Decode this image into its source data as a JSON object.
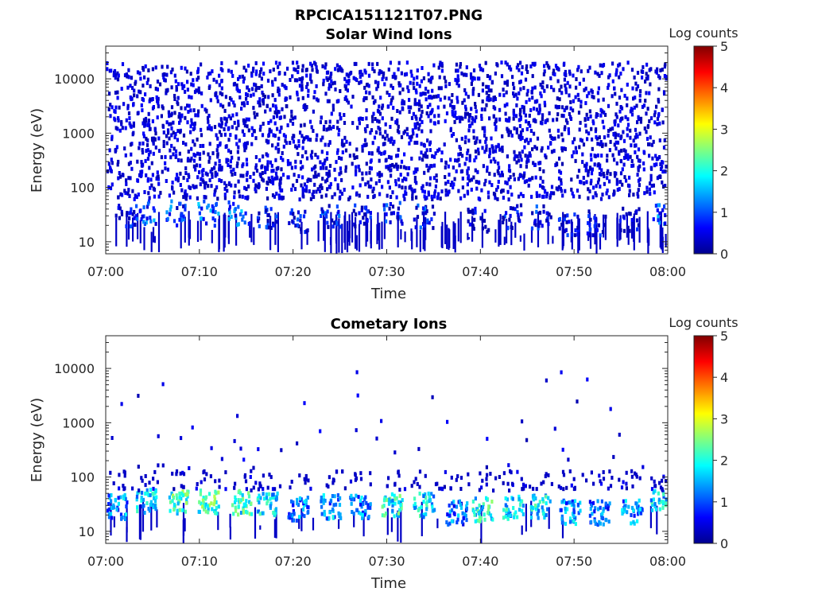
{
  "figure": {
    "filename_title": "RPCICA151121T07.PNG"
  },
  "colormap_stops": [
    "#00008f",
    "#0000ff",
    "#0080ff",
    "#00ffff",
    "#80ff80",
    "#ffff00",
    "#ff8000",
    "#ff0000",
    "#800000"
  ],
  "chart_data": [
    {
      "type": "heatmap",
      "title": "Solar Wind Ions",
      "xlabel": "Time",
      "ylabel": "Energy (eV)",
      "y_scale": "log",
      "xlim": [
        "07:00",
        "08:00"
      ],
      "ylim": [
        6,
        40000
      ],
      "x_ticks": [
        "07:00",
        "07:10",
        "07:20",
        "07:30",
        "07:40",
        "07:50",
        "08:00"
      ],
      "y_ticks": [
        10,
        100,
        1000,
        10000
      ],
      "y_tick_labels": [
        "10",
        "100",
        "1000",
        "10000"
      ],
      "colorbar": {
        "label": "Log counts",
        "range": [
          0,
          5
        ],
        "ticks": [
          "0",
          "1",
          "2",
          "3",
          "4",
          "5"
        ]
      },
      "bursts": [
        {
          "t": 2.2,
          "e": 28,
          "logc": 1.2
        },
        {
          "t": 4.3,
          "e": 35,
          "logc": 1.8
        },
        {
          "t": 7.5,
          "e": 33,
          "logc": 1.6
        },
        {
          "t": 11.0,
          "e": 33,
          "logc": 1.8
        },
        {
          "t": 14.2,
          "e": 32,
          "logc": 1.7
        },
        {
          "t": 17.3,
          "e": 28,
          "logc": 1.2
        },
        {
          "t": 20.6,
          "e": 25,
          "logc": 1.1
        },
        {
          "t": 24.0,
          "e": 30,
          "logc": 1.3
        },
        {
          "t": 27.2,
          "e": 28,
          "logc": 1.0
        },
        {
          "t": 30.6,
          "e": 33,
          "logc": 1.3
        },
        {
          "t": 34.0,
          "e": 30,
          "logc": 1.4
        },
        {
          "t": 39.8,
          "e": 25,
          "logc": 1.0
        },
        {
          "t": 43.3,
          "e": 28,
          "logc": 1.1
        },
        {
          "t": 46.5,
          "e": 27,
          "logc": 1.2
        },
        {
          "t": 49.5,
          "e": 22,
          "logc": 1.0
        },
        {
          "t": 52.5,
          "e": 22,
          "logc": 1.0
        },
        {
          "t": 56.0,
          "e": 25,
          "logc": 1.0
        },
        {
          "t": 59.3,
          "e": 33,
          "logc": 1.6
        }
      ],
      "noise_level": "high"
    },
    {
      "type": "heatmap",
      "title": "Cometary Ions",
      "xlabel": "Time",
      "ylabel": "Energy (eV)",
      "y_scale": "log",
      "xlim": [
        "07:00",
        "08:00"
      ],
      "ylim": [
        6,
        40000
      ],
      "x_ticks": [
        "07:00",
        "07:10",
        "07:20",
        "07:30",
        "07:40",
        "07:50",
        "08:00"
      ],
      "y_ticks": [
        10,
        100,
        1000,
        10000
      ],
      "y_tick_labels": [
        "10",
        "100",
        "1000",
        "10000"
      ],
      "colorbar": {
        "label": "Log counts",
        "range": [
          0,
          5
        ],
        "ticks": [
          "0",
          "1",
          "2",
          "3",
          "4",
          "5"
        ]
      },
      "bursts": [
        {
          "t": 1.3,
          "e": 28,
          "logc": 2.0
        },
        {
          "t": 4.4,
          "e": 35,
          "logc": 2.3
        },
        {
          "t": 7.8,
          "e": 33,
          "logc": 2.8
        },
        {
          "t": 11.0,
          "e": 35,
          "logc": 2.9
        },
        {
          "t": 14.5,
          "e": 33,
          "logc": 2.7
        },
        {
          "t": 17.3,
          "e": 30,
          "logc": 2.4
        },
        {
          "t": 20.6,
          "e": 25,
          "logc": 1.9
        },
        {
          "t": 24.0,
          "e": 28,
          "logc": 2.0
        },
        {
          "t": 27.2,
          "e": 28,
          "logc": 2.0
        },
        {
          "t": 30.6,
          "e": 30,
          "logc": 2.6
        },
        {
          "t": 34.0,
          "e": 30,
          "logc": 2.4
        },
        {
          "t": 37.5,
          "e": 22,
          "logc": 1.8
        },
        {
          "t": 40.3,
          "e": 25,
          "logc": 2.6
        },
        {
          "t": 43.5,
          "e": 28,
          "logc": 2.4
        },
        {
          "t": 46.5,
          "e": 28,
          "logc": 2.4
        },
        {
          "t": 49.6,
          "e": 22,
          "logc": 2.0
        },
        {
          "t": 52.8,
          "e": 22,
          "logc": 1.8
        },
        {
          "t": 56.2,
          "e": 22,
          "logc": 2.0
        },
        {
          "t": 59.3,
          "e": 33,
          "logc": 2.4
        }
      ],
      "noise_level": "low"
    }
  ]
}
